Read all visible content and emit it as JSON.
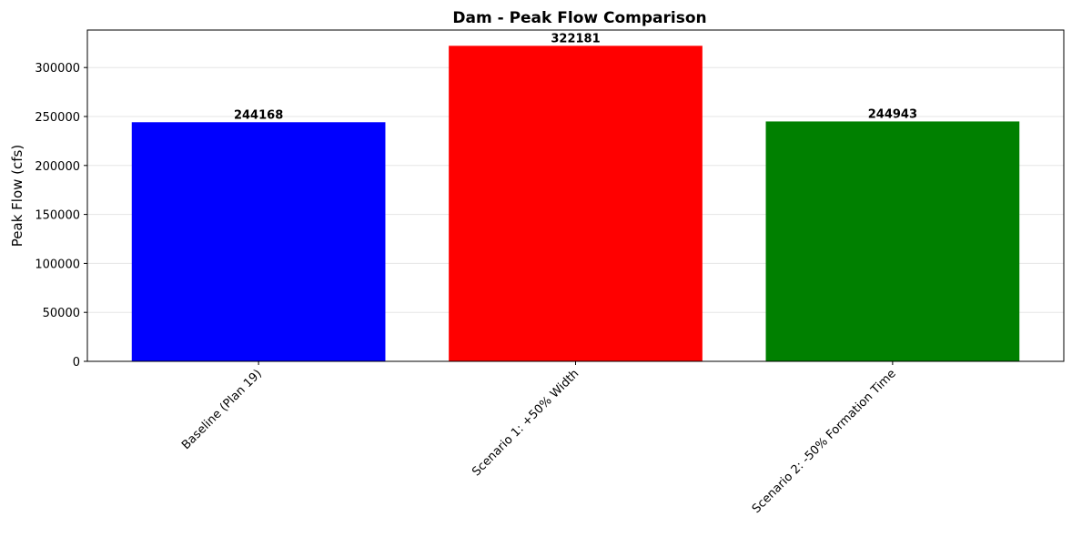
{
  "chart_data": {
    "type": "bar",
    "title": "Dam - Peak Flow Comparison",
    "y_label": "Peak Flow (cfs)",
    "categories": [
      "Baseline (Plan 19)",
      "Scenario 1: +50% Width",
      "Scenario 2: -50% Formation Time"
    ],
    "values": [
      244168,
      322181,
      244943
    ],
    "colors": [
      "#0000ff",
      "#ff0000",
      "#008000"
    ],
    "ylim": [
      0,
      338290
    ],
    "yticks": [
      0,
      50000,
      100000,
      150000,
      200000,
      250000,
      300000
    ],
    "grid": true
  }
}
